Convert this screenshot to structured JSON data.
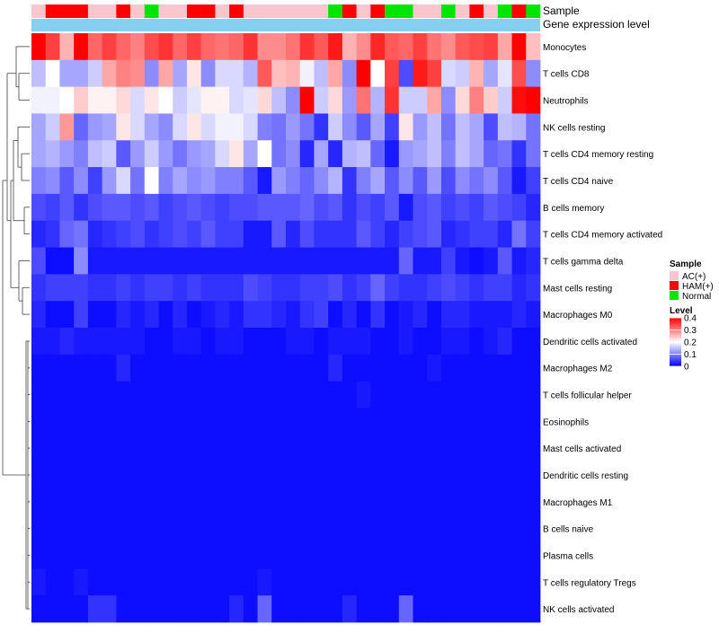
{
  "chart_data": {
    "type": "heatmap",
    "annotation_labels": {
      "sample": "Sample",
      "gene_expression": "Gene expression level"
    },
    "rows": [
      "Monocytes",
      "T cells CD8",
      "Neutrophils",
      "NK cells resting",
      "T cells CD4 memory resting",
      "T cells CD4 naive",
      "B cells memory",
      "T cells CD4 memory activated",
      "T cells gamma delta",
      "Mast cells resting",
      "Macrophages M0",
      "Dendritic cells activated",
      "Macrophages M2",
      "T cells follicular helper",
      "Eosinophils",
      "Mast cells activated",
      "Dendritic cells resting",
      "Macrophages M1",
      "B cells naive",
      "Plasma cells",
      "T cells regulatory  Tregs",
      "NK cells activated"
    ],
    "sample_groups": [
      "AC",
      "HAM",
      "HAM",
      "HAM",
      "AC",
      "AC",
      "HAM",
      "AC",
      "Normal",
      "AC",
      "AC",
      "HAM",
      "HAM",
      "AC",
      "HAM",
      "AC",
      "AC",
      "AC",
      "AC",
      "AC",
      "AC",
      "Normal",
      "HAM",
      "AC",
      "HAM",
      "Normal",
      "Normal",
      "AC",
      "AC",
      "Normal",
      "AC",
      "HAM",
      "AC",
      "Normal",
      "HAM",
      "Normal"
    ],
    "values": [
      [
        0.4,
        0.35,
        0.26,
        0.4,
        0.32,
        0.35,
        0.32,
        0.3,
        0.34,
        0.36,
        0.32,
        0.35,
        0.32,
        0.31,
        0.32,
        0.36,
        0.29,
        0.29,
        0.31,
        0.36,
        0.33,
        0.38,
        0.26,
        0.29,
        0.37,
        0.33,
        0.32,
        0.35,
        0.31,
        0.29,
        0.33,
        0.34,
        0.35,
        0.27,
        0.4,
        0.25
      ],
      [
        0.15,
        0.2,
        0.13,
        0.13,
        0.16,
        0.27,
        0.3,
        0.29,
        0.11,
        0.27,
        0.13,
        0.22,
        0.11,
        0.17,
        0.17,
        0.14,
        0.33,
        0.25,
        0.26,
        0.19,
        0.15,
        0.27,
        0.11,
        0.4,
        0.2,
        0.35,
        0.06,
        0.38,
        0.35,
        0.17,
        0.16,
        0.26,
        0.13,
        0.18,
        0.34,
        0.11
      ],
      [
        0.19,
        0.19,
        0.2,
        0.24,
        0.21,
        0.21,
        0.23,
        0.17,
        0.22,
        0.2,
        0.16,
        0.18,
        0.21,
        0.21,
        0.17,
        0.18,
        0.23,
        0.15,
        0.11,
        0.4,
        0.16,
        0.23,
        0.12,
        0.31,
        0.14,
        0.36,
        0.16,
        0.16,
        0.27,
        0.11,
        0.23,
        0.3,
        0.24,
        0.16,
        0.39,
        0.4
      ],
      [
        0.13,
        0.16,
        0.28,
        0.08,
        0.12,
        0.13,
        0.22,
        0.17,
        0.13,
        0.11,
        0.17,
        0.22,
        0.17,
        0.19,
        0.19,
        0.17,
        0.1,
        0.09,
        0.12,
        0.09,
        0.04,
        0.16,
        0.11,
        0.07,
        0.13,
        0.05,
        0.22,
        0.12,
        0.15,
        0.09,
        0.15,
        0.13,
        0.06,
        0.15,
        0.14,
        0.09
      ],
      [
        0.13,
        0.14,
        0.12,
        0.1,
        0.15,
        0.16,
        0.07,
        0.12,
        0.16,
        0.12,
        0.09,
        0.12,
        0.13,
        0.17,
        0.22,
        0.13,
        0.2,
        0.09,
        0.11,
        0.03,
        0.13,
        0.03,
        0.14,
        0.15,
        0.08,
        0.02,
        0.12,
        0.13,
        0.15,
        0.1,
        0.15,
        0.13,
        0.08,
        0.09,
        0.04,
        0.09
      ],
      [
        0.1,
        0.11,
        0.07,
        0.11,
        0.05,
        0.12,
        0.17,
        0.09,
        0.2,
        0.1,
        0.13,
        0.11,
        0.12,
        0.1,
        0.1,
        0.07,
        0.02,
        0.12,
        0.1,
        0.08,
        0.11,
        0.14,
        0.04,
        0.1,
        0.13,
        0.07,
        0.11,
        0.07,
        0.12,
        0.06,
        0.11,
        0.09,
        0.11,
        0.07,
        0.02,
        0.05
      ],
      [
        0.06,
        0.05,
        0.07,
        0.04,
        0.06,
        0.07,
        0.07,
        0.06,
        0.07,
        0.05,
        0.06,
        0.07,
        0.06,
        0.05,
        0.06,
        0.06,
        0.07,
        0.07,
        0.07,
        0.08,
        0.06,
        0.07,
        0.04,
        0.06,
        0.05,
        0.07,
        0.02,
        0.06,
        0.07,
        0.05,
        0.06,
        0.05,
        0.07,
        0.06,
        0.05,
        0.03
      ],
      [
        0.03,
        0.04,
        0.08,
        0.09,
        0.03,
        0.04,
        0.05,
        0.06,
        0.04,
        0.05,
        0.06,
        0.05,
        0.07,
        0.05,
        0.05,
        0.02,
        0.02,
        0.07,
        0.03,
        0.06,
        0.04,
        0.04,
        0.04,
        0.07,
        0.05,
        0.03,
        0.05,
        0.06,
        0.07,
        0.03,
        0.04,
        0.05,
        0.05,
        0.03,
        0.09,
        0.05
      ],
      [
        0.06,
        0.01,
        0.01,
        0.11,
        0.02,
        0.02,
        0.02,
        0.02,
        0.02,
        0.02,
        0.02,
        0.02,
        0.02,
        0.02,
        0.02,
        0.02,
        0.02,
        0.02,
        0.02,
        0.02,
        0.02,
        0.02,
        0.02,
        0.02,
        0.02,
        0.02,
        0.08,
        0.02,
        0.02,
        0.05,
        0.02,
        0.01,
        0.02,
        0.07,
        0.02,
        0.03
      ],
      [
        0.04,
        0.05,
        0.05,
        0.05,
        0.04,
        0.04,
        0.05,
        0.04,
        0.05,
        0.05,
        0.04,
        0.05,
        0.04,
        0.04,
        0.04,
        0.06,
        0.05,
        0.04,
        0.04,
        0.05,
        0.05,
        0.06,
        0.04,
        0.05,
        0.08,
        0.05,
        0.04,
        0.04,
        0.05,
        0.06,
        0.05,
        0.04,
        0.05,
        0.05,
        0.03,
        0.04
      ],
      [
        0.03,
        0.01,
        0.01,
        0.05,
        0.01,
        0.01,
        0.03,
        0.02,
        0.03,
        0.01,
        0.03,
        0.01,
        0.02,
        0.03,
        0.02,
        0.04,
        0.04,
        0.03,
        0.02,
        0.04,
        0.05,
        0.01,
        0.03,
        0.01,
        0.04,
        0.01,
        0.02,
        0.03,
        0.01,
        0.03,
        0.03,
        0.02,
        0.02,
        0.02,
        0.03,
        0.02
      ],
      [
        0.02,
        0.02,
        0.03,
        0.02,
        0.02,
        0.02,
        0.02,
        0.02,
        0.01,
        0.01,
        0.02,
        0.02,
        0.01,
        0.02,
        0.02,
        0.01,
        0.01,
        0.01,
        0.02,
        0.02,
        0.01,
        0.02,
        0.02,
        0.02,
        0.01,
        0.01,
        0.02,
        0.01,
        0.01,
        0.02,
        0.02,
        0.01,
        0.02,
        0.03,
        0.01,
        0.01
      ],
      [
        0.01,
        0.01,
        0.01,
        0.01,
        0.01,
        0.01,
        0.03,
        0.01,
        0.01,
        0.01,
        0.01,
        0.01,
        0.01,
        0.01,
        0.01,
        0.01,
        0.01,
        0.01,
        0.01,
        0.01,
        0.01,
        0.03,
        0.01,
        0.01,
        0.01,
        0.01,
        0.01,
        0.01,
        0.02,
        0.01,
        0.01,
        0.01,
        0.01,
        0.01,
        0.01,
        0.01
      ],
      [
        0.01,
        0.01,
        0.01,
        0.01,
        0.01,
        0.01,
        0.01,
        0.01,
        0.01,
        0.01,
        0.01,
        0.01,
        0.01,
        0.01,
        0.01,
        0.01,
        0.01,
        0.01,
        0.01,
        0.01,
        0.01,
        0.01,
        0.01,
        0.02,
        0.01,
        0.01,
        0.01,
        0.01,
        0.01,
        0.01,
        0.01,
        0.01,
        0.01,
        0.01,
        0.01,
        0.01
      ],
      [
        0.01,
        0.01,
        0.01,
        0.01,
        0.01,
        0.01,
        0.01,
        0.01,
        0.01,
        0.01,
        0.01,
        0.01,
        0.01,
        0.01,
        0.01,
        0.01,
        0.01,
        0.01,
        0.01,
        0.01,
        0.01,
        0.01,
        0.01,
        0.01,
        0.01,
        0.01,
        0.01,
        0.01,
        0.01,
        0.01,
        0.01,
        0.01,
        0.01,
        0.01,
        0.01,
        0.01
      ],
      [
        0.01,
        0.01,
        0.01,
        0.01,
        0.01,
        0.01,
        0.01,
        0.01,
        0.01,
        0.01,
        0.01,
        0.01,
        0.01,
        0.01,
        0.01,
        0.01,
        0.01,
        0.01,
        0.01,
        0.01,
        0.01,
        0.01,
        0.01,
        0.01,
        0.01,
        0.01,
        0.01,
        0.01,
        0.01,
        0.01,
        0.01,
        0.01,
        0.01,
        0.01,
        0.01,
        0.01
      ],
      [
        0.01,
        0.01,
        0.01,
        0.01,
        0.01,
        0.01,
        0.01,
        0.01,
        0.01,
        0.01,
        0.01,
        0.01,
        0.01,
        0.01,
        0.01,
        0.01,
        0.01,
        0.01,
        0.01,
        0.01,
        0.01,
        0.01,
        0.01,
        0.01,
        0.01,
        0.01,
        0.01,
        0.01,
        0.01,
        0.01,
        0.01,
        0.01,
        0.01,
        0.01,
        0.01,
        0.01
      ],
      [
        0.01,
        0.01,
        0.01,
        0.01,
        0.01,
        0.01,
        0.01,
        0.01,
        0.01,
        0.01,
        0.01,
        0.01,
        0.01,
        0.01,
        0.01,
        0.01,
        0.01,
        0.01,
        0.01,
        0.01,
        0.01,
        0.01,
        0.01,
        0.01,
        0.01,
        0.01,
        0.01,
        0.01,
        0.01,
        0.01,
        0.01,
        0.01,
        0.01,
        0.01,
        0.01,
        0.01
      ],
      [
        0.01,
        0.01,
        0.01,
        0.01,
        0.01,
        0.01,
        0.01,
        0.01,
        0.01,
        0.01,
        0.01,
        0.01,
        0.01,
        0.01,
        0.01,
        0.01,
        0.01,
        0.01,
        0.01,
        0.01,
        0.01,
        0.01,
        0.01,
        0.01,
        0.01,
        0.01,
        0.01,
        0.01,
        0.01,
        0.01,
        0.01,
        0.01,
        0.01,
        0.01,
        0.01,
        0.01
      ],
      [
        0.01,
        0.01,
        0.01,
        0.01,
        0.01,
        0.01,
        0.01,
        0.01,
        0.01,
        0.01,
        0.01,
        0.01,
        0.01,
        0.01,
        0.01,
        0.01,
        0.01,
        0.01,
        0.01,
        0.01,
        0.01,
        0.01,
        0.01,
        0.01,
        0.01,
        0.01,
        0.01,
        0.01,
        0.01,
        0.01,
        0.01,
        0.01,
        0.01,
        0.01,
        0.01,
        0.01
      ],
      [
        0.02,
        0.01,
        0.01,
        0.02,
        0.01,
        0.01,
        0.01,
        0.01,
        0.01,
        0.01,
        0.01,
        0.01,
        0.01,
        0.01,
        0.01,
        0.01,
        0.02,
        0.01,
        0.01,
        0.01,
        0.01,
        0.01,
        0.01,
        0.01,
        0.01,
        0.01,
        0.01,
        0.01,
        0.01,
        0.01,
        0.01,
        0.01,
        0.01,
        0.01,
        0.01,
        0.01
      ],
      [
        0.01,
        0.01,
        0.01,
        0.01,
        0.04,
        0.04,
        0.01,
        0.01,
        0.01,
        0.01,
        0.01,
        0.01,
        0.01,
        0.01,
        0.03,
        0.01,
        0.08,
        0.01,
        0.01,
        0.01,
        0.01,
        0.01,
        0.03,
        0.01,
        0.01,
        0.01,
        0.08,
        0.01,
        0.01,
        0.01,
        0.01,
        0.01,
        0.01,
        0.01,
        0.01,
        0.01
      ]
    ],
    "legend": {
      "sample_title": "Sample",
      "sample_entries": [
        {
          "key": "AC",
          "label": "AC(+)",
          "color": "#f9c6d0"
        },
        {
          "key": "HAM",
          "label": "HAM(+)",
          "color": "#ff0000"
        },
        {
          "key": "Normal",
          "label": "Normal",
          "color": "#00e600"
        }
      ],
      "level_title": "Level",
      "level_ticks": [
        "0.4",
        "0.3",
        "0.2",
        "0.1",
        "0"
      ],
      "level_tick_values": [
        0.4,
        0.3,
        0.2,
        0.1,
        0.0
      ],
      "vmin": 0.0,
      "vmax": 0.4
    },
    "colors": {
      "low": "#0000ff",
      "mid": "#ffffff",
      "high": "#ff0000",
      "gene_expression_bar": "#87cff0",
      "dendrogram": "#444444"
    }
  }
}
